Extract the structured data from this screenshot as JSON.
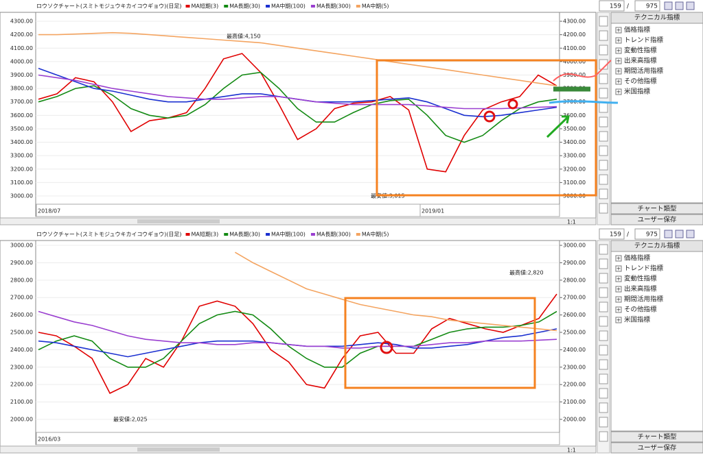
{
  "panels": [
    {
      "chart_data": {
        "type": "line",
        "title": "ロウソクチャート(スミトモジュウキカイコウギョウ)(日足)",
        "series": [
          {
            "name": "MA短期(3)",
            "color": "#e00000",
            "values": [
              3720,
              3760,
              3880,
              3850,
              3700,
              3480,
              3560,
              3580,
              3620,
              3800,
              4020,
              4060,
              3920,
              3680,
              3420,
              3500,
              3650,
              3690,
              3700,
              3740,
              3640,
              3200,
              3180,
              3450,
              3640,
              3700,
              3740,
              3900,
              3820
            ]
          },
          {
            "name": "MA長期(30)",
            "color": "#138a13",
            "values": [
              3700,
              3740,
              3800,
              3820,
              3750,
              3650,
              3600,
              3580,
              3600,
              3680,
              3800,
              3900,
              3920,
              3800,
              3650,
              3550,
              3550,
              3620,
              3680,
              3710,
              3720,
              3600,
              3450,
              3400,
              3450,
              3560,
              3650,
              3700,
              3720
            ]
          },
          {
            "name": "MA中期(100)",
            "color": "#1a2fd0",
            "values": [
              3950,
              3900,
              3850,
              3800,
              3780,
              3750,
              3720,
              3700,
              3700,
              3720,
              3740,
              3760,
              3760,
              3740,
              3720,
              3700,
              3700,
              3700,
              3710,
              3720,
              3730,
              3700,
              3650,
              3600,
              3590,
              3600,
              3620,
              3640,
              3660
            ]
          },
          {
            "name": "MA長期(300)",
            "color": "#9a3fd0",
            "values": [
              3900,
              3880,
              3860,
              3830,
              3800,
              3780,
              3760,
              3740,
              3730,
              3720,
              3720,
              3730,
              3740,
              3740,
              3720,
              3700,
              3690,
              3680,
              3680,
              3680,
              3680,
              3670,
              3660,
              3650,
              3650,
              3650,
              3655,
              3660,
              3665
            ]
          },
          {
            "name": "MA中期(5)",
            "color": "#f4a460",
            "values": [
              4200,
              4200,
              4205,
              4210,
              4215,
              4210,
              4200,
              4190,
              4180,
              4170,
              4160,
              4150,
              4140,
              4120,
              4100,
              4080,
              4060,
              4040,
              4020,
              4000,
              3980,
              3960,
              3940,
              3920,
              3900,
              3880,
              3860,
              3840,
              3820
            ]
          }
        ],
        "ylim": [
          2944,
          4346
        ],
        "yticks": [
          {
            "value": 3000,
            "label": "3000.00"
          },
          {
            "value": 3100,
            "label": "3100.00"
          },
          {
            "value": 3200,
            "label": "3200.00"
          },
          {
            "value": 3300,
            "label": "3300.00"
          },
          {
            "value": 3400,
            "label": "3400.00"
          },
          {
            "value": 3500,
            "label": "3500.00"
          },
          {
            "value": 3600,
            "label": "3600.00"
          },
          {
            "value": 3700,
            "label": "3700.00"
          },
          {
            "value": 3800,
            "label": "3800.00"
          },
          {
            "value": 3900,
            "label": "3900.00"
          },
          {
            "value": 4000,
            "label": "4000.00"
          },
          {
            "value": 4100,
            "label": "4100.00"
          },
          {
            "value": 4200,
            "label": "4200.00"
          },
          {
            "value": 4300,
            "label": "4300.00"
          }
        ],
        "x_labels": [
          "2018/07",
          "2019/01"
        ],
        "annotations": [
          "最高値:4,150",
          "最安値:3,015"
        ]
      },
      "toolbar": {
        "current": "159",
        "separator": "/",
        "total": "975",
        "zoom": "1:1"
      },
      "sidebar": {
        "title": "テクニカル指標",
        "items": [
          "価格指標",
          "トレンド指標",
          "変動性指標",
          "出来高指標",
          "期間活用指標",
          "その他指標",
          "米国指標"
        ],
        "buttons": [
          "チャート類型",
          "ユーザー保存"
        ]
      }
    },
    {
      "chart_data": {
        "type": "line",
        "title": "ロウソクチャート(スミトモジュウキカイコウギョウ)(日足)",
        "series": [
          {
            "name": "MA短期(3)",
            "color": "#e00000",
            "values": [
              2500,
              2480,
              2420,
              2350,
              2150,
              2200,
              2350,
              2300,
              2450,
              2650,
              2680,
              2650,
              2550,
              2400,
              2330,
              2200,
              2180,
              2350,
              2480,
              2500,
              2380,
              2380,
              2520,
              2580,
              2550,
              2520,
              2500,
              2540,
              2580,
              2720
            ]
          },
          {
            "name": "MA長期(30)",
            "color": "#138a13",
            "values": [
              2400,
              2450,
              2480,
              2450,
              2350,
              2300,
              2300,
              2350,
              2450,
              2550,
              2600,
              2620,
              2600,
              2520,
              2420,
              2350,
              2300,
              2300,
              2380,
              2420,
              2420,
              2420,
              2460,
              2500,
              2520,
              2530,
              2530,
              2540,
              2560,
              2620
            ]
          },
          {
            "name": "MA中期(100)",
            "color": "#1a2fd0",
            "values": [
              2450,
              2440,
              2420,
              2400,
              2380,
              2360,
              2380,
              2400,
              2420,
              2440,
              2450,
              2450,
              2450,
              2440,
              2430,
              2420,
              2420,
              2420,
              2430,
              2440,
              2430,
              2410,
              2410,
              2420,
              2430,
              2450,
              2470,
              2480,
              2500,
              2520
            ]
          },
          {
            "name": "MA長期(300)",
            "color": "#9a3fd0",
            "values": [
              2620,
              2590,
              2560,
              2540,
              2510,
              2480,
              2460,
              2450,
              2440,
              2440,
              2430,
              2430,
              2440,
              2440,
              2430,
              2420,
              2420,
              2410,
              2410,
              2420,
              2420,
              2420,
              2430,
              2440,
              2440,
              2450,
              2450,
              2450,
              2455,
              2460
            ]
          },
          {
            "name": "MA中期(5)",
            "color": "#f4a460",
            "values": [
              null,
              null,
              null,
              null,
              null,
              null,
              null,
              null,
              null,
              null,
              null,
              2960,
              2900,
              2850,
              2800,
              2750,
              2720,
              2690,
              2660,
              2640,
              2620,
              2600,
              2590,
              2570,
              2560,
              2550,
              2540,
              2530,
              2520,
              2510
            ]
          }
        ],
        "ylim": [
          1929,
          3012
        ],
        "yticks": [
          {
            "value": 2000,
            "label": "2000.00"
          },
          {
            "value": 2100,
            "label": "2100.00"
          },
          {
            "value": 2200,
            "label": "2200.00"
          },
          {
            "value": 2300,
            "label": "2300.00"
          },
          {
            "value": 2400,
            "label": "2400.00"
          },
          {
            "value": 2500,
            "label": "2500.00"
          },
          {
            "value": 2600,
            "label": "2600.00"
          },
          {
            "value": 2700,
            "label": "2700.00"
          },
          {
            "value": 2800,
            "label": "2800.00"
          },
          {
            "value": 2900,
            "label": "2900.00"
          },
          {
            "value": 3000,
            "label": "3000.00"
          }
        ],
        "x_labels": [
          "2016/03"
        ],
        "annotations": [
          "最高値:2,820",
          "最安値:2,025"
        ]
      },
      "toolbar": {
        "current": "159",
        "separator": "/",
        "total": "975",
        "zoom": "1:1"
      },
      "sidebar": {
        "title": "テクニカル指標",
        "items": [
          "価格指標",
          "トレンド指標",
          "変動性指標",
          "出来高指標",
          "期間活用指標",
          "その他指標",
          "米国指標"
        ],
        "buttons": [
          "チャート類型",
          "ユーザー保存"
        ]
      }
    }
  ]
}
